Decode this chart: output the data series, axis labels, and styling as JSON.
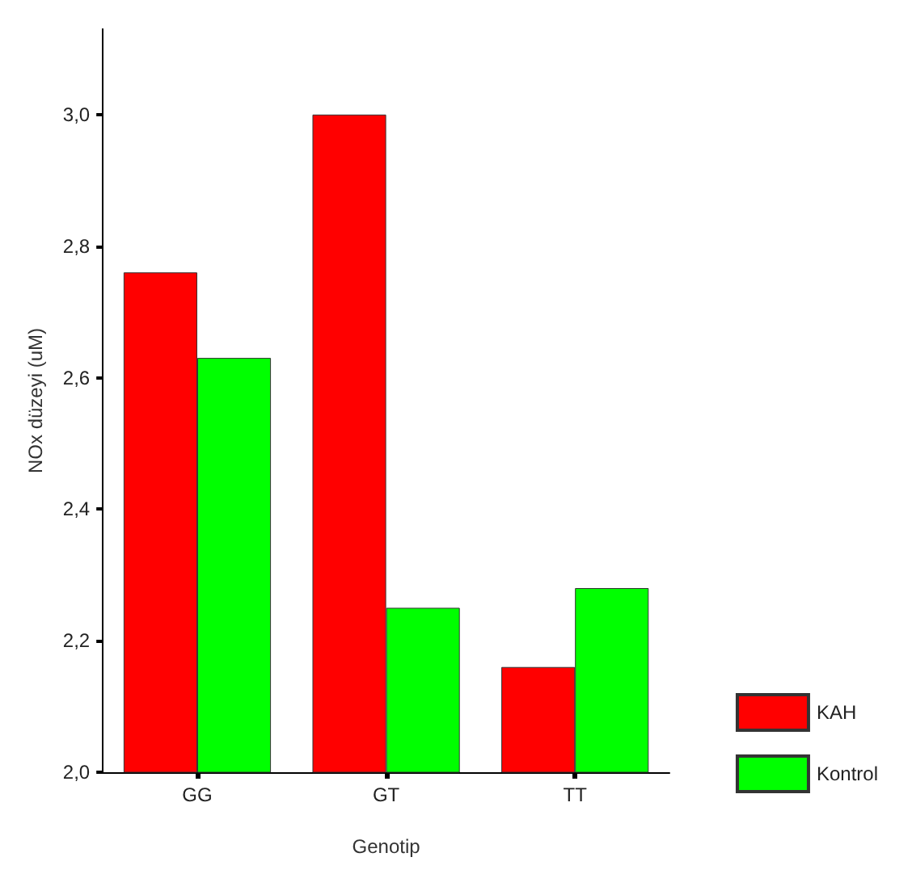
{
  "chart_data": {
    "type": "bar",
    "xlabel": "Genotip",
    "ylabel": "NOx düzeyi (uM)",
    "categories": [
      "GG",
      "GT",
      "TT"
    ],
    "series": [
      {
        "name": "KAH",
        "color": "#ff0000",
        "values": [
          2.76,
          3.0,
          2.16
        ]
      },
      {
        "name": "Kontrol",
        "color": "#00ff00",
        "values": [
          2.63,
          2.25,
          2.28
        ]
      }
    ],
    "ylim": [
      2.0,
      3.13
    ],
    "yticks": [
      {
        "value": 2.0,
        "label": "2,0"
      },
      {
        "value": 2.2,
        "label": "2,2"
      },
      {
        "value": 2.4,
        "label": "2,4"
      },
      {
        "value": 2.6,
        "label": "2,6"
      },
      {
        "value": 2.8,
        "label": "2,8"
      },
      {
        "value": 3.0,
        "label": "3,0"
      }
    ],
    "grid": false,
    "legend": "bottom right"
  }
}
